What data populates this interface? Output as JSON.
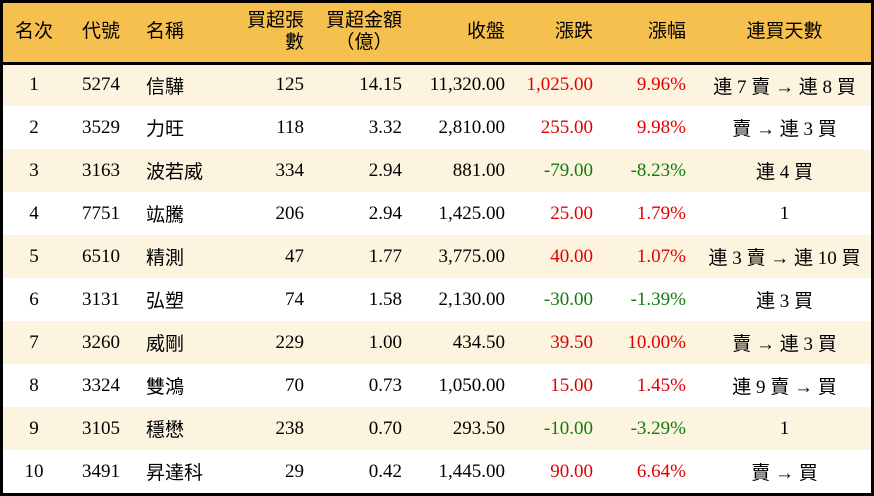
{
  "colors": {
    "header_bg": "#F6C04F",
    "row_alt_bg": "#FCF4DE",
    "row_bg": "#FFFFFF",
    "border": "#000000",
    "text": "#000000",
    "up": "#E00000",
    "down": "#0E7D0E"
  },
  "chart_data": {
    "type": "table",
    "columns": [
      {
        "key": "rank",
        "label": "名次"
      },
      {
        "key": "code",
        "label": "代號"
      },
      {
        "key": "name",
        "label": "名稱"
      },
      {
        "key": "volume",
        "label": "買超張數"
      },
      {
        "key": "amount",
        "label": "買超金額",
        "sublabel": "（億）"
      },
      {
        "key": "close",
        "label": "收盤"
      },
      {
        "key": "change",
        "label": "漲跌"
      },
      {
        "key": "pct",
        "label": "漲幅"
      },
      {
        "key": "streak",
        "label": "連買天數"
      }
    ],
    "rows": [
      {
        "rank": "1",
        "code": "5274",
        "name": "信驊",
        "volume": "125",
        "amount": "14.15",
        "close": "11,320.00",
        "change": "1,025.00",
        "pct": "9.96%",
        "streak": "連 7 賣 → 連 8 買"
      },
      {
        "rank": "2",
        "code": "3529",
        "name": "力旺",
        "volume": "118",
        "amount": "3.32",
        "close": "2,810.00",
        "change": "255.00",
        "pct": "9.98%",
        "streak": "賣 → 連 3 買"
      },
      {
        "rank": "3",
        "code": "3163",
        "name": "波若威",
        "volume": "334",
        "amount": "2.94",
        "close": "881.00",
        "change": "-79.00",
        "pct": "-8.23%",
        "streak": "連 4 買"
      },
      {
        "rank": "4",
        "code": "7751",
        "name": "竑騰",
        "volume": "206",
        "amount": "2.94",
        "close": "1,425.00",
        "change": "25.00",
        "pct": "1.79%",
        "streak": "1"
      },
      {
        "rank": "5",
        "code": "6510",
        "name": "精測",
        "volume": "47",
        "amount": "1.77",
        "close": "3,775.00",
        "change": "40.00",
        "pct": "1.07%",
        "streak": "連 3 賣 → 連 10 買"
      },
      {
        "rank": "6",
        "code": "3131",
        "name": "弘塑",
        "volume": "74",
        "amount": "1.58",
        "close": "2,130.00",
        "change": "-30.00",
        "pct": "-1.39%",
        "streak": "連 3 買"
      },
      {
        "rank": "7",
        "code": "3260",
        "name": "威剛",
        "volume": "229",
        "amount": "1.00",
        "close": "434.50",
        "change": "39.50",
        "pct": "10.00%",
        "streak": "賣 → 連 3 買"
      },
      {
        "rank": "8",
        "code": "3324",
        "name": "雙鴻",
        "volume": "70",
        "amount": "0.73",
        "close": "1,050.00",
        "change": "15.00",
        "pct": "1.45%",
        "streak": "連 9 賣 → 買"
      },
      {
        "rank": "9",
        "code": "3105",
        "name": "穩懋",
        "volume": "238",
        "amount": "0.70",
        "close": "293.50",
        "change": "-10.00",
        "pct": "-3.29%",
        "streak": "1"
      },
      {
        "rank": "10",
        "code": "3491",
        "name": "昇達科",
        "volume": "29",
        "amount": "0.42",
        "close": "1,445.00",
        "change": "90.00",
        "pct": "6.64%",
        "streak": "賣 → 買"
      }
    ]
  }
}
